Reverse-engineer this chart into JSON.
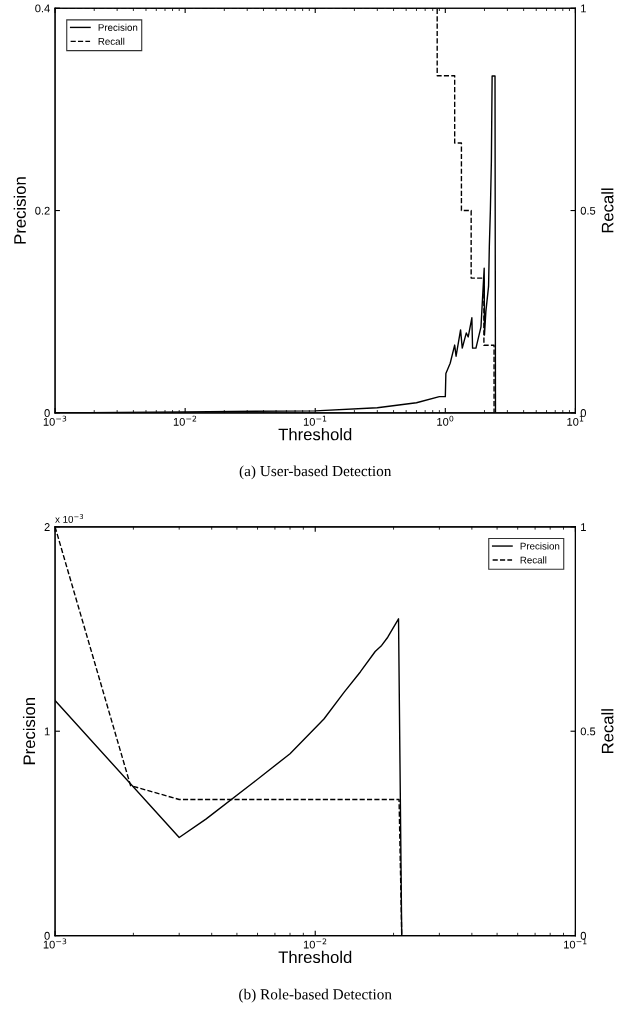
{
  "chart_data": [
    {
      "type": "line",
      "title": "(a) User-based Detection",
      "xlabel": "Threshold",
      "ylabel": "Precision",
      "y2label": "Recall",
      "log": "x",
      "legend": "top left",
      "grid": false,
      "xlim": [
        0.001,
        10
      ],
      "xticks": [
        {
          "value": 0.001,
          "label": "10$^{−3}$"
        },
        {
          "value": 0.01,
          "label": "10$^{−2}$"
        },
        {
          "value": 0.1,
          "label": "10$^{−1}$"
        },
        {
          "value": 1,
          "label": "10$^{0}$"
        },
        {
          "value": 10,
          "label": "10$^{1}$"
        }
      ],
      "ylim": [
        0,
        0.4
      ],
      "yticks": [
        0,
        0.2,
        0.4
      ],
      "y2lim": [
        0,
        1
      ],
      "y2ticks": [
        0,
        0.5,
        1
      ],
      "series": [
        {
          "name": "Precision",
          "color": "#000000",
          "line_style": "solid",
          "x": [
            0.001,
            0.01,
            0.1,
            0.3,
            0.6,
            0.9,
            1.0,
            1.01,
            1.09,
            1.18,
            1.21,
            1.31,
            1.35,
            1.45,
            1.5,
            1.6,
            1.62,
            1.72,
            1.88,
            1.93,
            1.99,
            2.0,
            2.05,
            2.15,
            2.18,
            2.22,
            2.26,
            2.29,
            2.41,
            2.43
          ],
          "values": [
            0,
            0.001,
            0.002,
            0.005,
            0.01,
            0.016,
            0.016,
            0.039,
            0.049,
            0.067,
            0.056,
            0.082,
            0.064,
            0.079,
            0.075,
            0.094,
            0.064,
            0.064,
            0.085,
            0.112,
            0.143,
            0.077,
            0.1,
            0.125,
            0.165,
            0.2,
            0.249,
            0.333,
            0.333,
            0
          ]
        },
        {
          "name": "Recall",
          "type": "step",
          "axis": "y2",
          "color": "#000000",
          "line_style": "dashed",
          "x": [
            0.001,
            0.866,
            1.18,
            1.33,
            1.58,
            1.98,
            2.37
          ],
          "values": [
            1,
            0.833,
            0.667,
            0.5,
            0.333,
            0.167,
            0
          ]
        }
      ]
    },
    {
      "type": "line",
      "title": "(b) Role-based Detection",
      "xlabel": "Threshold",
      "ylabel": "Precision",
      "y2label": "Recall",
      "log": "x",
      "legend": "top right",
      "grid": false,
      "annotations": [
        "x 10$^{−3}$"
      ],
      "xlim": [
        0.001,
        0.1
      ],
      "xticks": [
        {
          "value": 0.001,
          "label": "10$^{−3}$"
        },
        {
          "value": 0.01,
          "label": "10$^{−2}$"
        },
        {
          "value": 0.1,
          "label": "10$^{−1}$"
        }
      ],
      "ylim": [
        0,
        2
      ],
      "yticks": [
        0,
        1,
        2
      ],
      "y2lim": [
        0,
        1
      ],
      "y2ticks": [
        0,
        0.5,
        1
      ],
      "series": [
        {
          "name": "Precision",
          "color": "#000000",
          "line_style": "solid",
          "x": [
            0.001,
            0.003,
            0.0038,
            0.0058,
            0.008,
            0.0108,
            0.0129,
            0.0149,
            0.017,
            0.018,
            0.019,
            0.0209,
            0.0215
          ],
          "values": [
            1.15,
            0.48,
            0.57,
            0.75,
            0.89,
            1.06,
            1.19,
            1.29,
            1.39,
            1.42,
            1.46,
            1.55,
            0
          ]
        },
        {
          "name": "Recall",
          "axis": "y2",
          "color": "#000000",
          "line_style": "dashed",
          "x": [
            0.001,
            0.00195,
            0.003,
            0.021,
            0.0215
          ],
          "values": [
            1,
            0.367,
            0.333,
            0.333,
            0
          ]
        }
      ]
    }
  ]
}
